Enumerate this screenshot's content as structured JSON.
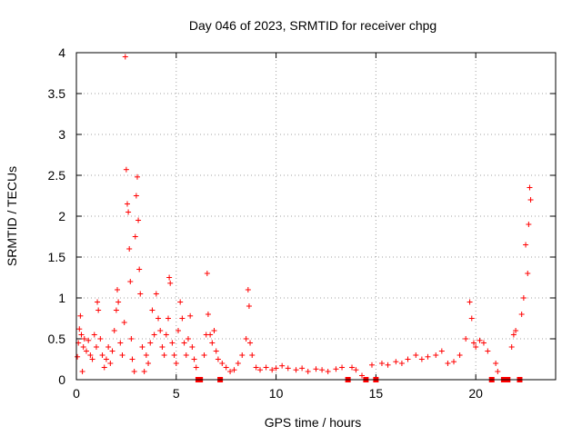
{
  "chart_data": {
    "type": "scatter",
    "title": "Day 046 of 2023, SRMTID for receiver chpg",
    "xlabel": "GPS time / hours",
    "ylabel": "SRMTID / TECUs",
    "xlim": [
      0,
      24
    ],
    "ylim": [
      0,
      4
    ],
    "x_ticks": [
      0,
      5,
      10,
      15,
      20
    ],
    "y_ticks": [
      0,
      0.5,
      1,
      1.5,
      2,
      2.5,
      3,
      3.5,
      4
    ],
    "x_tick_labels": [
      "0",
      "5",
      "10",
      "15",
      "20"
    ],
    "y_tick_labels": [
      "0",
      "0.5",
      "1",
      "1.5",
      "2",
      "2.5",
      "3",
      "3.5",
      "4"
    ],
    "grid": true,
    "marker": "plus",
    "color": "#ff0000",
    "series": [
      {
        "name": "SRMTID",
        "points": [
          [
            0.05,
            0.28
          ],
          [
            0.1,
            0.45
          ],
          [
            0.15,
            0.62
          ],
          [
            0.2,
            0.78
          ],
          [
            0.25,
            0.55
          ],
          [
            0.3,
            0.1
          ],
          [
            0.35,
            0.4
          ],
          [
            0.4,
            0.5
          ],
          [
            0.5,
            0.35
          ],
          [
            0.6,
            0.48
          ],
          [
            0.7,
            0.3
          ],
          [
            0.8,
            0.25
          ],
          [
            0.9,
            0.55
          ],
          [
            1.0,
            0.4
          ],
          [
            1.05,
            0.95
          ],
          [
            1.1,
            0.85
          ],
          [
            1.2,
            0.5
          ],
          [
            1.3,
            0.3
          ],
          [
            1.4,
            0.15
          ],
          [
            1.5,
            0.25
          ],
          [
            1.6,
            0.4
          ],
          [
            1.7,
            0.2
          ],
          [
            1.8,
            0.35
          ],
          [
            1.9,
            0.6
          ],
          [
            2.0,
            0.85
          ],
          [
            2.05,
            1.1
          ],
          [
            2.1,
            0.95
          ],
          [
            2.2,
            0.45
          ],
          [
            2.3,
            0.3
          ],
          [
            2.4,
            0.7
          ],
          [
            2.45,
            3.95
          ],
          [
            2.5,
            2.57
          ],
          [
            2.55,
            2.15
          ],
          [
            2.6,
            2.05
          ],
          [
            2.65,
            1.6
          ],
          [
            2.7,
            1.2
          ],
          [
            2.75,
            0.5
          ],
          [
            2.8,
            0.25
          ],
          [
            2.9,
            0.1
          ],
          [
            2.95,
            1.75
          ],
          [
            3.0,
            2.25
          ],
          [
            3.05,
            2.48
          ],
          [
            3.1,
            1.95
          ],
          [
            3.15,
            1.35
          ],
          [
            3.2,
            1.05
          ],
          [
            3.3,
            0.4
          ],
          [
            3.4,
            0.1
          ],
          [
            3.5,
            0.3
          ],
          [
            3.6,
            0.2
          ],
          [
            3.7,
            0.45
          ],
          [
            3.8,
            0.85
          ],
          [
            3.9,
            0.55
          ],
          [
            4.0,
            1.05
          ],
          [
            4.1,
            0.75
          ],
          [
            4.2,
            0.6
          ],
          [
            4.3,
            0.4
          ],
          [
            4.4,
            0.3
          ],
          [
            4.5,
            0.55
          ],
          [
            4.6,
            0.75
          ],
          [
            4.65,
            1.25
          ],
          [
            4.7,
            1.18
          ],
          [
            4.8,
            0.45
          ],
          [
            4.9,
            0.3
          ],
          [
            5.0,
            0.2
          ],
          [
            5.1,
            0.6
          ],
          [
            5.2,
            0.95
          ],
          [
            5.3,
            0.75
          ],
          [
            5.4,
            0.45
          ],
          [
            5.5,
            0.3
          ],
          [
            5.6,
            0.5
          ],
          [
            5.7,
            0.78
          ],
          [
            5.8,
            0.4
          ],
          [
            5.9,
            0.25
          ],
          [
            6.0,
            0.15
          ],
          [
            6.1,
            0.0
          ],
          [
            6.2,
            0.0
          ],
          [
            6.4,
            0.3
          ],
          [
            6.5,
            0.55
          ],
          [
            6.55,
            1.3
          ],
          [
            6.6,
            0.8
          ],
          [
            6.7,
            0.55
          ],
          [
            6.8,
            0.45
          ],
          [
            6.9,
            0.6
          ],
          [
            7.0,
            0.35
          ],
          [
            7.1,
            0.25
          ],
          [
            7.2,
            0.0
          ],
          [
            7.3,
            0.2
          ],
          [
            7.5,
            0.15
          ],
          [
            7.7,
            0.1
          ],
          [
            7.9,
            0.12
          ],
          [
            8.1,
            0.2
          ],
          [
            8.3,
            0.3
          ],
          [
            8.5,
            0.5
          ],
          [
            8.6,
            1.1
          ],
          [
            8.65,
            0.9
          ],
          [
            8.7,
            0.45
          ],
          [
            8.8,
            0.3
          ],
          [
            9.0,
            0.15
          ],
          [
            9.2,
            0.12
          ],
          [
            9.5,
            0.15
          ],
          [
            9.8,
            0.12
          ],
          [
            10.0,
            0.14
          ],
          [
            10.3,
            0.17
          ],
          [
            10.6,
            0.14
          ],
          [
            11.0,
            0.12
          ],
          [
            11.3,
            0.14
          ],
          [
            11.6,
            0.1
          ],
          [
            12.0,
            0.13
          ],
          [
            12.3,
            0.12
          ],
          [
            12.6,
            0.1
          ],
          [
            13.0,
            0.13
          ],
          [
            13.3,
            0.15
          ],
          [
            13.6,
            0.0
          ],
          [
            13.8,
            0.15
          ],
          [
            14.0,
            0.12
          ],
          [
            14.3,
            0.05
          ],
          [
            14.5,
            0.0
          ],
          [
            14.8,
            0.18
          ],
          [
            15.0,
            0.0
          ],
          [
            15.3,
            0.2
          ],
          [
            15.6,
            0.18
          ],
          [
            16.0,
            0.22
          ],
          [
            16.3,
            0.2
          ],
          [
            16.6,
            0.25
          ],
          [
            17.0,
            0.3
          ],
          [
            17.3,
            0.25
          ],
          [
            17.6,
            0.28
          ],
          [
            18.0,
            0.3
          ],
          [
            18.3,
            0.35
          ],
          [
            18.6,
            0.2
          ],
          [
            18.9,
            0.22
          ],
          [
            19.2,
            0.3
          ],
          [
            19.5,
            0.5
          ],
          [
            19.7,
            0.95
          ],
          [
            19.8,
            0.75
          ],
          [
            19.9,
            0.45
          ],
          [
            20.0,
            0.4
          ],
          [
            20.2,
            0.48
          ],
          [
            20.4,
            0.45
          ],
          [
            20.6,
            0.35
          ],
          [
            20.8,
            0.0
          ],
          [
            21.0,
            0.2
          ],
          [
            21.1,
            0.1
          ],
          [
            21.4,
            0.0
          ],
          [
            21.6,
            0.0
          ],
          [
            21.8,
            0.4
          ],
          [
            21.9,
            0.55
          ],
          [
            22.0,
            0.6
          ],
          [
            22.2,
            0.0
          ],
          [
            22.3,
            0.8
          ],
          [
            22.4,
            1.0
          ],
          [
            22.5,
            1.65
          ],
          [
            22.6,
            1.3
          ],
          [
            22.65,
            1.9
          ],
          [
            22.7,
            2.35
          ],
          [
            22.75,
            2.2
          ]
        ]
      }
    ]
  }
}
